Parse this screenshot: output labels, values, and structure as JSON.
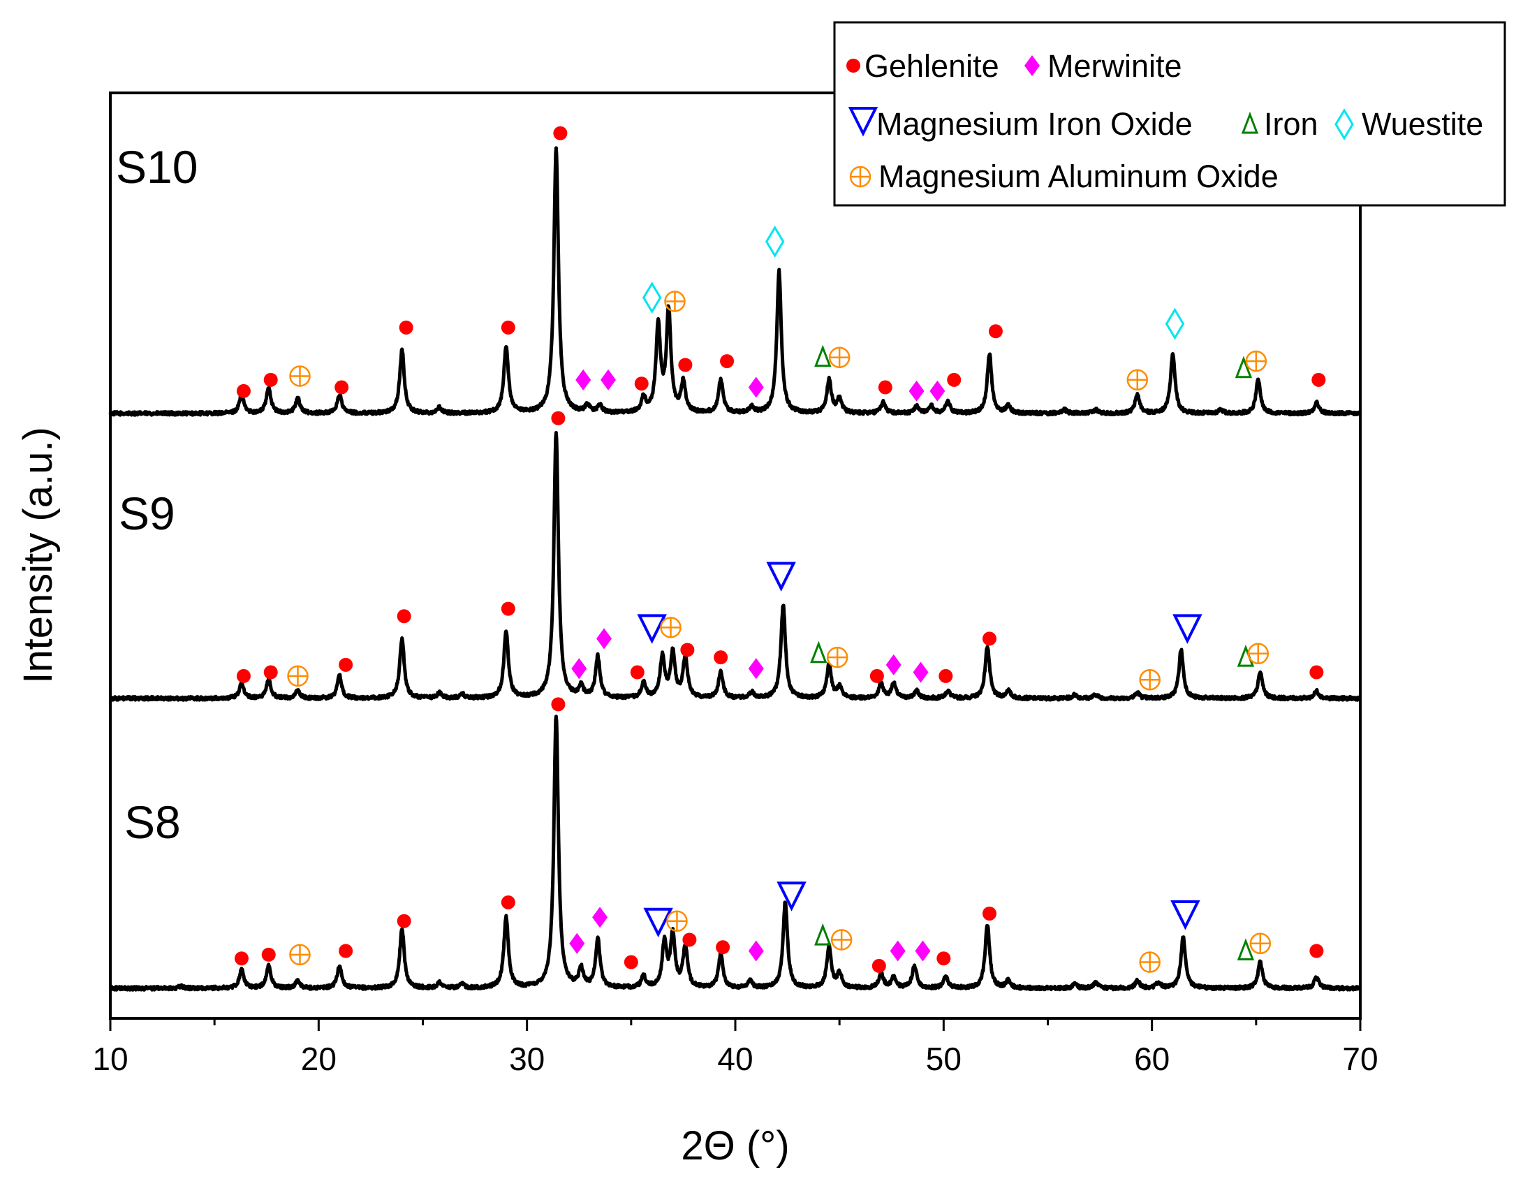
{
  "chart_data": {
    "type": "line",
    "title": "",
    "xlabel": "2Θ (°)",
    "ylabel": "Intensity (a.u.)",
    "xlim": [
      10,
      70
    ],
    "xticks": [
      "10",
      "20",
      "30",
      "40",
      "50",
      "60",
      "70"
    ],
    "colors": {
      "line": "#000000",
      "gehlenite": "#ff0000",
      "merwinite": "#ff00ff",
      "magnesium_iron_oxide": "#0000ff",
      "iron": "#008000",
      "wuestite": "#00e5ee",
      "magnesium_aluminum_oxide": "#ff8c00"
    },
    "legend": {
      "position": "top-right",
      "entries": [
        {
          "key": "gehlenite",
          "label": "Gehlenite",
          "marker": "circle"
        },
        {
          "key": "merwinite",
          "label": "Merwinite",
          "marker": "diamond"
        },
        {
          "key": "magnesium_iron_oxide",
          "label": "Magnesium Iron Oxide",
          "marker": "triangle-down-open"
        },
        {
          "key": "iron",
          "label": "Iron",
          "marker": "delta-glyph"
        },
        {
          "key": "wuestite",
          "label": "Wuestite",
          "marker": "diamond-open"
        },
        {
          "key": "magnesium_aluminum_oxide",
          "label": "Magnesium Aluminum Oxide",
          "marker": "circle-plus"
        }
      ]
    },
    "series": [
      {
        "name": "S10",
        "baseline": 0.0,
        "peaks": [
          [
            16.3,
            5
          ],
          [
            17.6,
            7
          ],
          [
            19.0,
            4
          ],
          [
            21.0,
            5
          ],
          [
            24.0,
            17
          ],
          [
            25.8,
            1.5
          ],
          [
            29.0,
            18
          ],
          [
            31.4,
            71
          ],
          [
            32.9,
            2
          ],
          [
            33.5,
            2
          ],
          [
            35.6,
            4
          ],
          [
            36.3,
            23
          ],
          [
            36.8,
            27
          ],
          [
            37.5,
            8
          ],
          [
            39.3,
            9
          ],
          [
            40.8,
            1.5
          ],
          [
            42.1,
            38
          ],
          [
            44.5,
            9
          ],
          [
            45.0,
            4
          ],
          [
            47.1,
            3
          ],
          [
            48.7,
            2
          ],
          [
            49.4,
            2
          ],
          [
            50.2,
            3
          ],
          [
            52.2,
            16
          ],
          [
            53.1,
            2
          ],
          [
            55.8,
            1
          ],
          [
            57.3,
            1
          ],
          [
            59.3,
            5
          ],
          [
            61.0,
            16
          ],
          [
            63.3,
            1
          ],
          [
            65.1,
            9
          ],
          [
            67.9,
            3
          ]
        ],
        "markers": [
          {
            "phase": "gehlenite",
            "x": 16.4,
            "y": 6
          },
          {
            "phase": "gehlenite",
            "x": 17.7,
            "y": 9
          },
          {
            "phase": "magnesium_aluminum_oxide",
            "x": 19.1,
            "y": 10
          },
          {
            "phase": "gehlenite",
            "x": 21.1,
            "y": 7
          },
          {
            "phase": "gehlenite",
            "x": 24.2,
            "y": 23
          },
          {
            "phase": "gehlenite",
            "x": 29.1,
            "y": 23
          },
          {
            "phase": "gehlenite",
            "x": 31.6,
            "y": 75
          },
          {
            "phase": "merwinite",
            "x": 32.7,
            "y": 9
          },
          {
            "phase": "merwinite",
            "x": 33.9,
            "y": 9
          },
          {
            "phase": "gehlenite",
            "x": 35.5,
            "y": 8
          },
          {
            "phase": "wuestite",
            "x": 36.0,
            "y": 31
          },
          {
            "phase": "magnesium_aluminum_oxide",
            "x": 37.1,
            "y": 30
          },
          {
            "phase": "gehlenite",
            "x": 37.6,
            "y": 13
          },
          {
            "phase": "gehlenite",
            "x": 39.6,
            "y": 14
          },
          {
            "phase": "merwinite",
            "x": 41.0,
            "y": 7
          },
          {
            "phase": "wuestite",
            "x": 41.9,
            "y": 46
          },
          {
            "phase": "iron",
            "x": 44.2,
            "y": 15
          },
          {
            "phase": "magnesium_aluminum_oxide",
            "x": 45.0,
            "y": 15
          },
          {
            "phase": "gehlenite",
            "x": 47.2,
            "y": 7
          },
          {
            "phase": "merwinite",
            "x": 48.7,
            "y": 6
          },
          {
            "phase": "merwinite",
            "x": 49.7,
            "y": 6
          },
          {
            "phase": "gehlenite",
            "x": 50.5,
            "y": 9
          },
          {
            "phase": "gehlenite",
            "x": 52.5,
            "y": 22
          },
          {
            "phase": "magnesium_aluminum_oxide",
            "x": 59.3,
            "y": 9
          },
          {
            "phase": "wuestite",
            "x": 61.1,
            "y": 24
          },
          {
            "phase": "iron",
            "x": 64.4,
            "y": 12
          },
          {
            "phase": "magnesium_aluminum_oxide",
            "x": 65.0,
            "y": 14
          },
          {
            "phase": "gehlenite",
            "x": 68.0,
            "y": 9
          }
        ]
      },
      {
        "name": "S9",
        "baseline": 0.0,
        "peaks": [
          [
            16.3,
            4
          ],
          [
            17.6,
            5
          ],
          [
            19.0,
            2
          ],
          [
            21.0,
            6
          ],
          [
            24.0,
            16
          ],
          [
            25.8,
            1.5
          ],
          [
            26.9,
            1
          ],
          [
            29.0,
            18
          ],
          [
            31.4,
            71
          ],
          [
            32.6,
            3
          ],
          [
            33.4,
            11
          ],
          [
            35.6,
            4
          ],
          [
            36.5,
            11
          ],
          [
            37.0,
            12
          ],
          [
            37.6,
            11
          ],
          [
            39.3,
            7
          ],
          [
            40.8,
            1.5
          ],
          [
            42.3,
            25
          ],
          [
            44.5,
            9
          ],
          [
            45.0,
            3
          ],
          [
            47.0,
            4
          ],
          [
            47.6,
            4
          ],
          [
            48.7,
            2
          ],
          [
            50.2,
            2
          ],
          [
            52.1,
            14
          ],
          [
            53.1,
            2
          ],
          [
            56.3,
            1
          ],
          [
            57.3,
            1
          ],
          [
            59.3,
            1.5
          ],
          [
            61.4,
            13
          ],
          [
            65.2,
            7
          ],
          [
            67.9,
            2
          ]
        ],
        "markers": [
          {
            "phase": "gehlenite",
            "x": 16.4,
            "y": 6
          },
          {
            "phase": "gehlenite",
            "x": 17.7,
            "y": 7
          },
          {
            "phase": "magnesium_aluminum_oxide",
            "x": 19.0,
            "y": 6
          },
          {
            "phase": "gehlenite",
            "x": 21.3,
            "y": 9
          },
          {
            "phase": "gehlenite",
            "x": 24.1,
            "y": 22
          },
          {
            "phase": "gehlenite",
            "x": 29.1,
            "y": 24
          },
          {
            "phase": "gehlenite",
            "x": 31.5,
            "y": 75
          },
          {
            "phase": "merwinite",
            "x": 32.5,
            "y": 8
          },
          {
            "phase": "merwinite",
            "x": 33.7,
            "y": 16
          },
          {
            "phase": "gehlenite",
            "x": 35.3,
            "y": 7
          },
          {
            "phase": "magnesium_iron_oxide",
            "x": 36.0,
            "y": 19
          },
          {
            "phase": "magnesium_aluminum_oxide",
            "x": 36.9,
            "y": 19
          },
          {
            "phase": "gehlenite",
            "x": 37.7,
            "y": 13
          },
          {
            "phase": "gehlenite",
            "x": 39.3,
            "y": 11
          },
          {
            "phase": "merwinite",
            "x": 41.0,
            "y": 8
          },
          {
            "phase": "magnesium_iron_oxide",
            "x": 42.2,
            "y": 33
          },
          {
            "phase": "iron",
            "x": 44.0,
            "y": 12
          },
          {
            "phase": "magnesium_aluminum_oxide",
            "x": 44.9,
            "y": 11
          },
          {
            "phase": "gehlenite",
            "x": 46.8,
            "y": 6
          },
          {
            "phase": "merwinite",
            "x": 47.6,
            "y": 9
          },
          {
            "phase": "merwinite",
            "x": 48.9,
            "y": 7
          },
          {
            "phase": "gehlenite",
            "x": 50.1,
            "y": 6
          },
          {
            "phase": "gehlenite",
            "x": 52.2,
            "y": 16
          },
          {
            "phase": "magnesium_aluminum_oxide",
            "x": 59.9,
            "y": 5
          },
          {
            "phase": "magnesium_iron_oxide",
            "x": 61.7,
            "y": 19
          },
          {
            "phase": "iron",
            "x": 64.5,
            "y": 11
          },
          {
            "phase": "magnesium_aluminum_oxide",
            "x": 65.1,
            "y": 12
          },
          {
            "phase": "gehlenite",
            "x": 67.9,
            "y": 7
          }
        ]
      },
      {
        "name": "S8",
        "baseline": 0.0,
        "peaks": [
          [
            13.4,
            0.6
          ],
          [
            16.3,
            5
          ],
          [
            17.6,
            6
          ],
          [
            19.0,
            2
          ],
          [
            21.0,
            6
          ],
          [
            24.0,
            16
          ],
          [
            25.8,
            1.5
          ],
          [
            26.9,
            1
          ],
          [
            29.0,
            19
          ],
          [
            31.4,
            73
          ],
          [
            32.6,
            5
          ],
          [
            33.4,
            13
          ],
          [
            35.6,
            3
          ],
          [
            36.6,
            12
          ],
          [
            37.0,
            14
          ],
          [
            37.6,
            11
          ],
          [
            39.3,
            9
          ],
          [
            40.7,
            2
          ],
          [
            42.4,
            23
          ],
          [
            44.5,
            11
          ],
          [
            45.0,
            4
          ],
          [
            47.0,
            4
          ],
          [
            47.6,
            3
          ],
          [
            48.6,
            6
          ],
          [
            50.1,
            3
          ],
          [
            52.1,
            17
          ],
          [
            53.1,
            2
          ],
          [
            56.3,
            1
          ],
          [
            57.3,
            1.5
          ],
          [
            59.3,
            2
          ],
          [
            60.3,
            1.5
          ],
          [
            61.5,
            14
          ],
          [
            65.2,
            7
          ],
          [
            67.9,
            3
          ]
        ],
        "markers": [
          {
            "phase": "gehlenite",
            "x": 16.3,
            "y": 8
          },
          {
            "phase": "gehlenite",
            "x": 17.6,
            "y": 9
          },
          {
            "phase": "magnesium_aluminum_oxide",
            "x": 19.1,
            "y": 9
          },
          {
            "phase": "gehlenite",
            "x": 21.3,
            "y": 10
          },
          {
            "phase": "gehlenite",
            "x": 24.1,
            "y": 18
          },
          {
            "phase": "gehlenite",
            "x": 29.1,
            "y": 23
          },
          {
            "phase": "gehlenite",
            "x": 31.5,
            "y": 76
          },
          {
            "phase": "merwinite",
            "x": 32.4,
            "y": 12
          },
          {
            "phase": "merwinite",
            "x": 33.5,
            "y": 19
          },
          {
            "phase": "gehlenite",
            "x": 35.0,
            "y": 7
          },
          {
            "phase": "magnesium_iron_oxide",
            "x": 36.3,
            "y": 18
          },
          {
            "phase": "magnesium_aluminum_oxide",
            "x": 37.2,
            "y": 18
          },
          {
            "phase": "gehlenite",
            "x": 37.8,
            "y": 13
          },
          {
            "phase": "gehlenite",
            "x": 39.4,
            "y": 11
          },
          {
            "phase": "merwinite",
            "x": 41.0,
            "y": 10
          },
          {
            "phase": "magnesium_iron_oxide",
            "x": 42.7,
            "y": 25
          },
          {
            "phase": "iron",
            "x": 44.2,
            "y": 14
          },
          {
            "phase": "magnesium_aluminum_oxide",
            "x": 45.1,
            "y": 13
          },
          {
            "phase": "gehlenite",
            "x": 46.9,
            "y": 6
          },
          {
            "phase": "merwinite",
            "x": 47.8,
            "y": 10
          },
          {
            "phase": "merwinite",
            "x": 49.0,
            "y": 10
          },
          {
            "phase": "gehlenite",
            "x": 50.0,
            "y": 8
          },
          {
            "phase": "gehlenite",
            "x": 52.2,
            "y": 20
          },
          {
            "phase": "magnesium_aluminum_oxide",
            "x": 59.9,
            "y": 7
          },
          {
            "phase": "magnesium_iron_oxide",
            "x": 61.6,
            "y": 20
          },
          {
            "phase": "iron",
            "x": 64.5,
            "y": 10
          },
          {
            "phase": "magnesium_aluminum_oxide",
            "x": 65.2,
            "y": 12
          },
          {
            "phase": "gehlenite",
            "x": 67.9,
            "y": 10
          }
        ]
      }
    ]
  }
}
